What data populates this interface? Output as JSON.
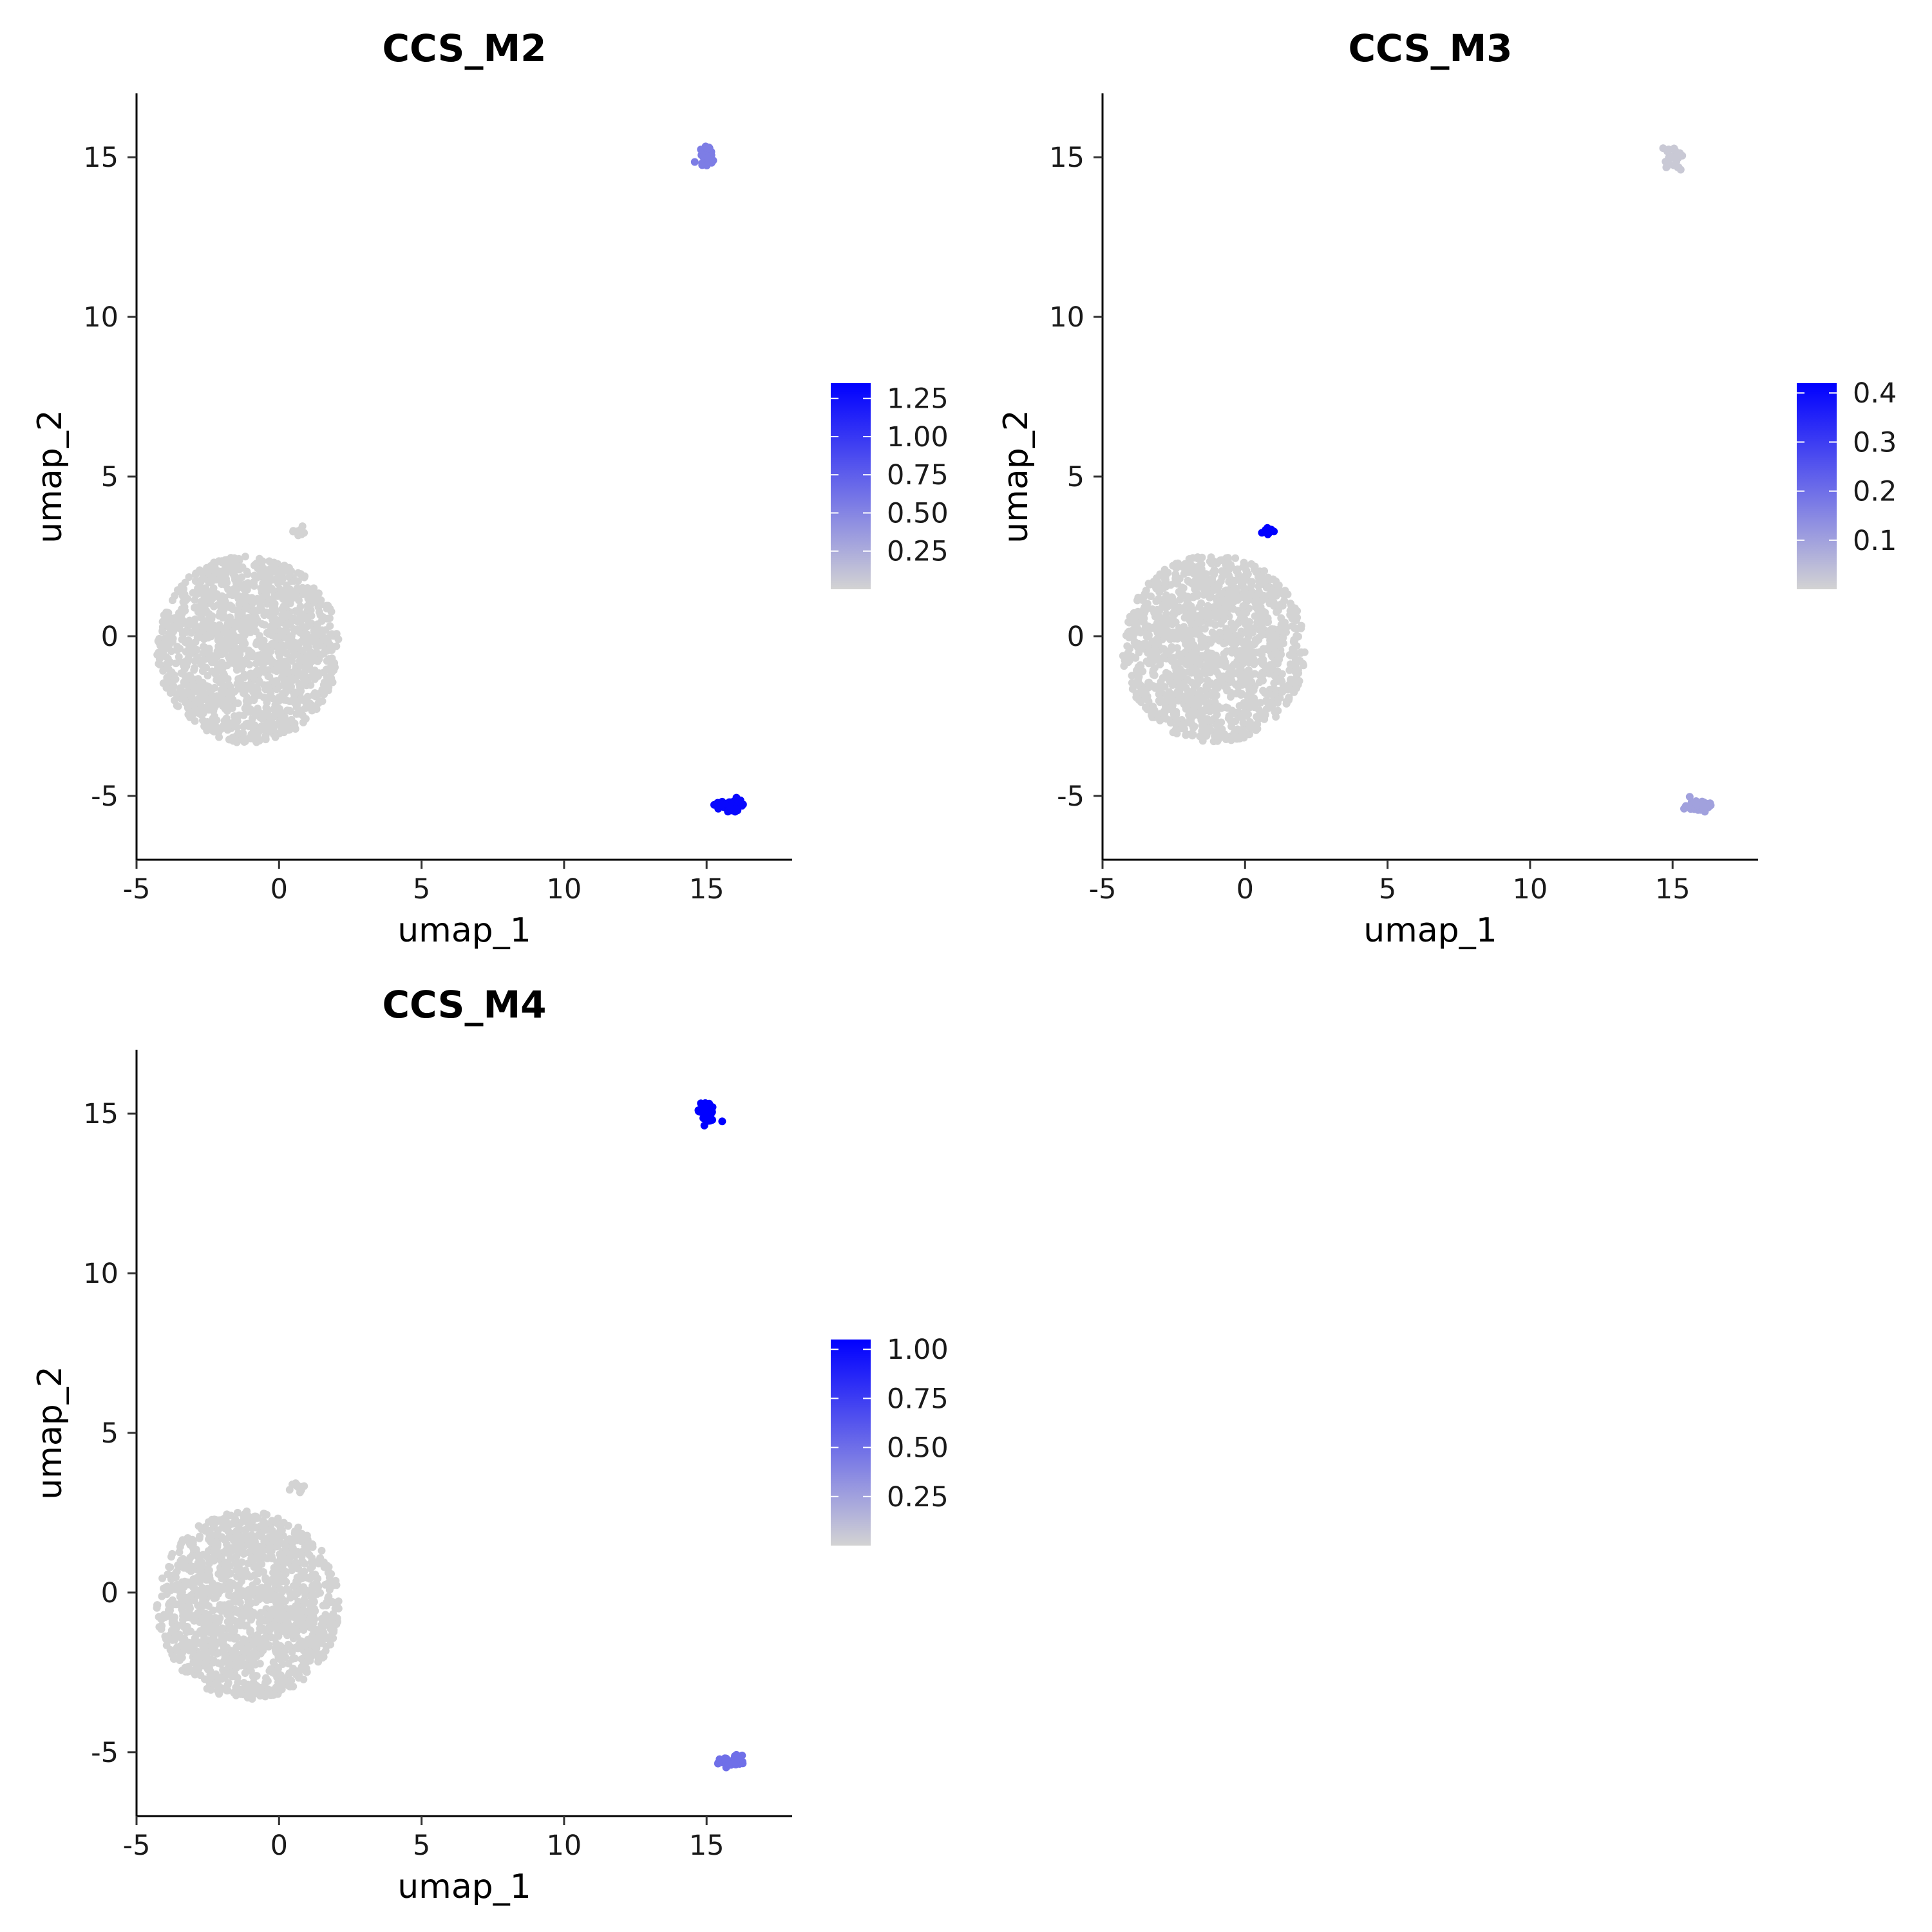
{
  "chart_data": [
    {
      "type": "scatter",
      "title": "CCS_M2",
      "xlabel": "umap_1",
      "ylabel": "umap_2",
      "xlim": [
        -5,
        18
      ],
      "ylim": [
        -7,
        17
      ],
      "xticks": [
        "-5",
        "0",
        "5",
        "10",
        "15"
      ],
      "yticks": [
        "-5",
        "0",
        "5",
        "10",
        "15"
      ],
      "color_low": "#d3d3d3",
      "color_high": "#0000ff",
      "legend": {
        "placement": "right",
        "range": [
          0,
          1.35
        ],
        "ticks": [
          0.25,
          0.5,
          0.75,
          1.0,
          1.25
        ],
        "tick_labels": [
          "0.25",
          "0.50",
          "0.75",
          "1.00",
          "1.25"
        ]
      },
      "clusters": [
        {
          "shape": "disk",
          "center": [
            -1.1,
            -0.4
          ],
          "spread": [
            3.2,
            3.2
          ],
          "n": 1400,
          "value": 0
        },
        {
          "shape": "blob",
          "center": [
            0.7,
            3.3
          ],
          "spread": [
            0.25,
            0.15
          ],
          "n": 12,
          "value": 0
        },
        {
          "shape": "blob",
          "center": [
            15.0,
            15.0
          ],
          "spread": [
            0.3,
            0.3
          ],
          "n": 30,
          "value": 0.55
        },
        {
          "shape": "blob",
          "center": [
            15.9,
            -5.3
          ],
          "spread": [
            0.4,
            0.15
          ],
          "n": 45,
          "value": 1.3
        }
      ]
    },
    {
      "type": "scatter",
      "title": "CCS_M3",
      "xlabel": "umap_1",
      "ylabel": "umap_2",
      "xlim": [
        -5,
        18
      ],
      "ylim": [
        -7,
        17
      ],
      "xticks": [
        "-5",
        "0",
        "5",
        "10",
        "15"
      ],
      "yticks": [
        "-5",
        "0",
        "5",
        "10",
        "15"
      ],
      "color_low": "#d3d3d3",
      "color_high": "#0000ff",
      "legend": {
        "placement": "right",
        "range": [
          0,
          0.42
        ],
        "ticks": [
          0.1,
          0.2,
          0.3,
          0.4
        ],
        "tick_labels": [
          "0.1",
          "0.2",
          "0.3",
          "0.4"
        ]
      },
      "clusters": [
        {
          "shape": "disk",
          "center": [
            -1.1,
            -0.4
          ],
          "spread": [
            3.2,
            3.2
          ],
          "n": 1400,
          "value": 0
        },
        {
          "shape": "blob",
          "center": [
            0.8,
            3.3
          ],
          "spread": [
            0.15,
            0.12
          ],
          "n": 8,
          "value": 0.42
        },
        {
          "shape": "blob",
          "center": [
            15.0,
            15.0
          ],
          "spread": [
            0.3,
            0.3
          ],
          "n": 30,
          "value": 0.02
        },
        {
          "shape": "blob",
          "center": [
            15.9,
            -5.3
          ],
          "spread": [
            0.4,
            0.15
          ],
          "n": 45,
          "value": 0.1
        }
      ]
    },
    {
      "type": "scatter",
      "title": "CCS_M4",
      "xlabel": "umap_1",
      "ylabel": "umap_2",
      "xlim": [
        -5,
        18
      ],
      "ylim": [
        -7,
        17
      ],
      "xticks": [
        "-5",
        "0",
        "5",
        "10",
        "15"
      ],
      "yticks": [
        "-5",
        "0",
        "5",
        "10",
        "15"
      ],
      "color_low": "#d3d3d3",
      "color_high": "#0000ff",
      "legend": {
        "placement": "right",
        "range": [
          0,
          1.05
        ],
        "ticks": [
          0.25,
          0.5,
          0.75,
          1.0
        ],
        "tick_labels": [
          "0.25",
          "0.50",
          "0.75",
          "1.00"
        ]
      },
      "clusters": [
        {
          "shape": "disk",
          "center": [
            -1.1,
            -0.4
          ],
          "spread": [
            3.2,
            3.2
          ],
          "n": 1400,
          "value": 0
        },
        {
          "shape": "blob",
          "center": [
            0.7,
            3.3
          ],
          "spread": [
            0.25,
            0.15
          ],
          "n": 12,
          "value": 0
        },
        {
          "shape": "blob",
          "center": [
            15.0,
            15.0
          ],
          "spread": [
            0.3,
            0.3
          ],
          "n": 30,
          "value": 1.05
        },
        {
          "shape": "blob",
          "center": [
            15.9,
            -5.3
          ],
          "spread": [
            0.4,
            0.15
          ],
          "n": 45,
          "value": 0.5
        }
      ]
    }
  ]
}
